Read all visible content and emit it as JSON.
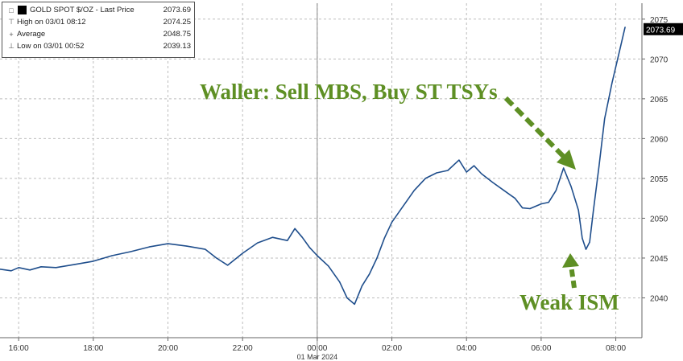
{
  "legend": {
    "title": "GOLD SPOT $/OZ - Last Price",
    "last_price": "2073.69",
    "high_label": "High on 03/01 08:12",
    "high_value": "2074.25",
    "avg_label": "Average",
    "avg_value": "2048.75",
    "low_label": "Low on 03/01 00:52",
    "low_value": "2039.13"
  },
  "last_price_tag": "2073.69",
  "annotations": {
    "waller": "Waller: Sell MBS, Buy ST TSYs",
    "ism": "Weak ISM"
  },
  "colors": {
    "line": "#1f4e8c",
    "annotation": "#5e8f24",
    "grid": "#bdbdbd",
    "last_tag_bg": "#000000"
  },
  "chart_data": {
    "type": "line",
    "title": "GOLD SPOT $/OZ - Last Price",
    "xlabel": "",
    "ylabel": "",
    "ylim": [
      2035,
      2077
    ],
    "xlim": [
      15.5,
      32.7
    ],
    "grid": true,
    "y_ticks": [
      2040,
      2045,
      2050,
      2055,
      2060,
      2065,
      2070,
      2075
    ],
    "y_tick_labels": [
      "2040",
      "2045",
      "2050",
      "2055",
      "2060",
      "2065",
      "2070",
      "2075"
    ],
    "x_tick_positions": [
      16,
      18,
      20,
      22,
      24,
      26,
      28,
      30,
      32
    ],
    "x_tick_labels": [
      "16:00",
      "18:00",
      "20:00",
      "22:00",
      "00:00",
      "02:00",
      "04:00",
      "06:00",
      "08:00"
    ],
    "date_label": "01 Mar 2024",
    "series": [
      {
        "name": "GOLD SPOT $/OZ",
        "x": [
          15.5,
          15.8,
          16.0,
          16.3,
          16.6,
          17.0,
          17.5,
          18.0,
          18.5,
          19.0,
          19.5,
          20.0,
          20.5,
          21.0,
          21.3,
          21.6,
          22.0,
          22.4,
          22.8,
          23.2,
          23.4,
          23.6,
          23.8,
          24.0,
          24.3,
          24.6,
          24.8,
          25.0,
          25.2,
          25.4,
          25.6,
          25.8,
          26.0,
          26.3,
          26.6,
          26.9,
          27.2,
          27.5,
          27.8,
          28.0,
          28.2,
          28.4,
          28.7,
          29.0,
          29.3,
          29.5,
          29.7,
          30.0,
          30.2,
          30.4,
          30.6,
          30.8,
          31.0,
          31.1,
          31.2,
          31.3,
          31.4,
          31.55,
          31.7,
          31.9,
          32.1,
          32.25
        ],
        "values": [
          2043.6,
          2043.4,
          2043.8,
          2043.5,
          2043.9,
          2043.8,
          2044.2,
          2044.6,
          2045.3,
          2045.8,
          2046.4,
          2046.8,
          2046.5,
          2046.1,
          2045.0,
          2044.1,
          2045.6,
          2046.9,
          2047.6,
          2047.2,
          2048.7,
          2047.6,
          2046.3,
          2045.3,
          2044.0,
          2042.0,
          2040.0,
          2039.2,
          2041.5,
          2043.0,
          2045.0,
          2047.5,
          2049.5,
          2051.5,
          2053.5,
          2055.0,
          2055.7,
          2056.0,
          2057.3,
          2055.8,
          2056.6,
          2055.6,
          2054.5,
          2053.5,
          2052.5,
          2051.3,
          2051.2,
          2051.8,
          2052.0,
          2053.5,
          2056.3,
          2054.0,
          2051.0,
          2047.5,
          2046.1,
          2047.0,
          2051.0,
          2056.5,
          2062.5,
          2067.0,
          2071.0,
          2074.0
        ]
      }
    ],
    "last_value": 2073.69
  }
}
